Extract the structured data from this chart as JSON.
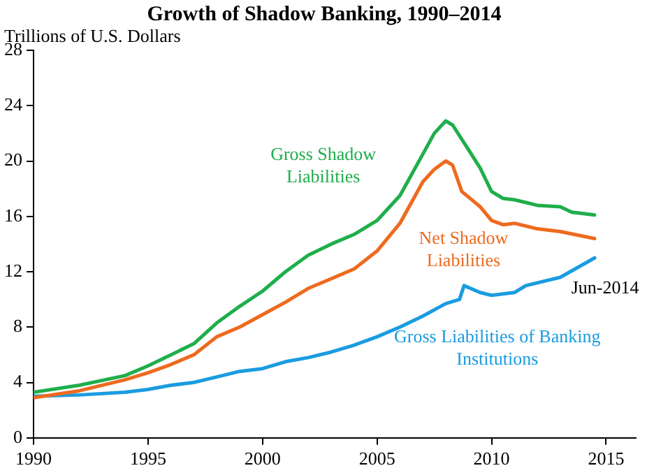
{
  "chart_data": {
    "type": "line",
    "title": "Growth of Shadow Banking, 1990–2014",
    "ylabel": "Trillions of U.S. Dollars",
    "xlim": [
      1990,
      2016.3
    ],
    "xticks": [
      1990,
      1995,
      2000,
      2005,
      2010,
      2015
    ],
    "ylim": [
      0,
      28
    ],
    "yticks": [
      0,
      4,
      8,
      12,
      16,
      20,
      24,
      28
    ],
    "grid": false,
    "legend": false,
    "marker": "none",
    "line_style": "solid",
    "series": [
      {
        "name": "Gross Shadow Liabilities",
        "color": "#1fae4b",
        "x": [
          1990,
          1992,
          1994,
          1995,
          1996,
          1997,
          1998,
          1999,
          2000,
          2001,
          2002,
          2003,
          2004,
          2005,
          2006,
          2007,
          2007.5,
          2008,
          2008.3,
          2009,
          2009.5,
          2010,
          2010.5,
          2011,
          2012,
          2013,
          2013.5,
          2014.5
        ],
        "values": [
          3.3,
          3.8,
          4.5,
          5.2,
          6.0,
          6.8,
          8.3,
          9.5,
          10.6,
          12.0,
          13.2,
          14.0,
          14.7,
          15.7,
          17.5,
          20.5,
          22.0,
          22.9,
          22.6,
          20.8,
          19.5,
          17.8,
          17.3,
          17.2,
          16.8,
          16.7,
          16.3,
          16.1
        ]
      },
      {
        "name": "Net Shadow Liabilities",
        "color": "#ee6a1f",
        "x": [
          1990,
          1992,
          1994,
          1995,
          1996,
          1997,
          1998,
          1999,
          2000,
          2001,
          2002,
          2003,
          2004,
          2005,
          2006,
          2007,
          2007.5,
          2008,
          2008.3,
          2008.7,
          2009.5,
          2010,
          2010.5,
          2011,
          2012,
          2013,
          2014.5
        ],
        "values": [
          2.9,
          3.4,
          4.2,
          4.7,
          5.3,
          6.0,
          7.3,
          8.0,
          8.9,
          9.8,
          10.8,
          11.5,
          12.2,
          13.5,
          15.5,
          18.5,
          19.4,
          20.0,
          19.7,
          17.8,
          16.7,
          15.7,
          15.4,
          15.5,
          15.1,
          14.9,
          14.4
        ]
      },
      {
        "name": "Gross Liabilities of Banking Institutions",
        "color": "#1a9ce0",
        "x": [
          1990,
          1992,
          1994,
          1995,
          1996,
          1997,
          1998,
          1999,
          2000,
          2001,
          2002,
          2003,
          2004,
          2005,
          2006,
          2007,
          2008,
          2008.6,
          2008.8,
          2009.5,
          2010,
          2011,
          2011.5,
          2012,
          2013,
          2014.5
        ],
        "values": [
          3.0,
          3.1,
          3.3,
          3.5,
          3.8,
          4.0,
          4.4,
          4.8,
          5.0,
          5.5,
          5.8,
          6.2,
          6.7,
          7.3,
          8.0,
          8.8,
          9.7,
          10.0,
          11.0,
          10.5,
          10.3,
          10.5,
          11.0,
          11.2,
          11.6,
          13.0
        ]
      }
    ],
    "annotations": [
      "Jun-2014"
    ]
  }
}
